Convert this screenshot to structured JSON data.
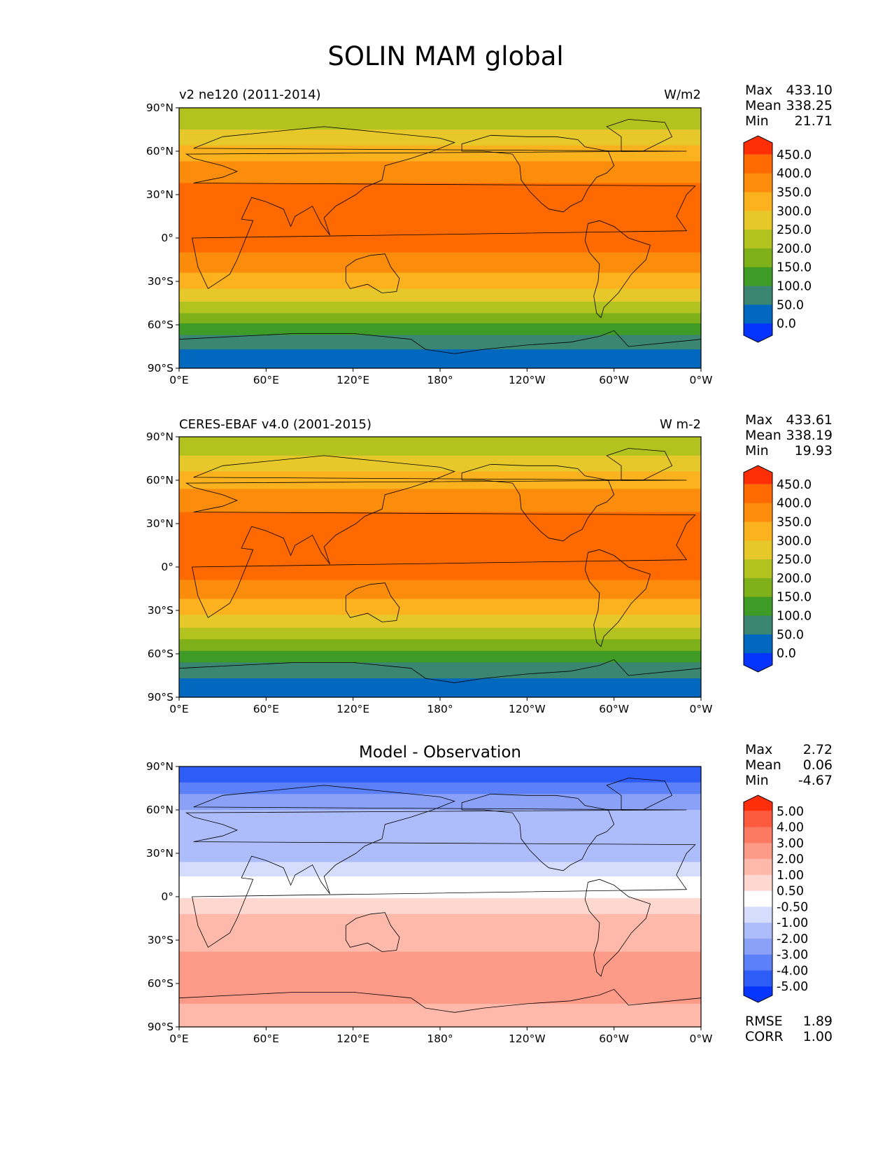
{
  "title": "SOLIN MAM global",
  "panels": [
    {
      "id": "test",
      "title_left": "v2 ne120 (2011-2014)",
      "title_center": "",
      "title_right": "W/m2",
      "stats": [
        {
          "label": "Max",
          "value": "433.10"
        },
        {
          "label": "Mean",
          "value": "338.25"
        },
        {
          "label": "Min",
          "value": "21.71"
        }
      ],
      "colorbar_labels": [
        "450.0",
        "400.0",
        "350.0",
        "300.0",
        "250.0",
        "200.0",
        "150.0",
        "100.0",
        "50.0",
        "0.0"
      ],
      "colorbar_colors": [
        "#ff2e05",
        "#ff6a00",
        "#fb8c0c",
        "#fbb21e",
        "#e6c82a",
        "#b2c21f",
        "#7db019",
        "#3e9b26",
        "#3a8670",
        "#0068bf",
        "#0534ff"
      ]
    },
    {
      "id": "reference",
      "title_left": "CERES-EBAF v4.0 (2001-2015)",
      "title_center": "",
      "title_right": "W m-2",
      "stats": [
        {
          "label": "Max",
          "value": "433.61"
        },
        {
          "label": "Mean",
          "value": "338.19"
        },
        {
          "label": "Min",
          "value": "19.93"
        }
      ],
      "colorbar_labels": [
        "450.0",
        "400.0",
        "350.0",
        "300.0",
        "250.0",
        "200.0",
        "150.0",
        "100.0",
        "50.0",
        "0.0"
      ],
      "colorbar_colors": [
        "#ff2e05",
        "#ff6a00",
        "#fb8c0c",
        "#fbb21e",
        "#e6c82a",
        "#b2c21f",
        "#7db019",
        "#3e9b26",
        "#3a8670",
        "#0068bf",
        "#0534ff"
      ]
    },
    {
      "id": "difference",
      "title_left": "",
      "title_center": "Model - Observation",
      "title_right": "",
      "stats": [
        {
          "label": "Max",
          "value": "2.72"
        },
        {
          "label": "Mean",
          "value": "0.06"
        },
        {
          "label": "Min",
          "value": "-4.67"
        }
      ],
      "extra_stats": [
        {
          "label": "RMSE",
          "value": "1.89"
        },
        {
          "label": "CORR",
          "value": "1.00"
        }
      ],
      "colorbar_labels": [
        "5.00",
        "4.00",
        "3.00",
        "2.00",
        "1.00",
        "0.50",
        "-0.50",
        "-1.00",
        "-2.00",
        "-3.00",
        "-4.00",
        "-5.00"
      ],
      "colorbar_colors": [
        "#ff2e0a",
        "#fc5a3c",
        "#fd7a62",
        "#fe9a88",
        "#feb9ab",
        "#fed8d0",
        "#ffffff",
        "#d6dcfc",
        "#adbcfa",
        "#8aa1f7",
        "#5b80f7",
        "#2d5cf7",
        "#0535ff"
      ]
    }
  ],
  "axes": {
    "lat_ticks": [
      "90°N",
      "60°N",
      "30°N",
      "0°",
      "30°S",
      "60°S",
      "90°S"
    ],
    "lon_ticks": [
      "0°E",
      "60°E",
      "120°E",
      "180°",
      "120°W",
      "60°W",
      "0°W"
    ]
  },
  "chart_data": [
    {
      "type": "heatmap",
      "name": "v2 ne120 (2011-2014)",
      "units": "W/m2",
      "x_range": [
        0,
        360
      ],
      "y_range": [
        -90,
        90
      ],
      "levels": [
        0,
        50,
        100,
        150,
        200,
        250,
        300,
        350,
        400,
        450
      ],
      "lat_bands": [
        {
          "lat": [
            75,
            90
          ],
          "value": 225
        },
        {
          "lat": [
            64,
            75
          ],
          "value": 275
        },
        {
          "lat": [
            53,
            64
          ],
          "value": 325
        },
        {
          "lat": [
            38,
            53
          ],
          "value": 375
        },
        {
          "lat": [
            -10,
            38
          ],
          "value": 425
        },
        {
          "lat": [
            -24,
            -10
          ],
          "value": 375
        },
        {
          "lat": [
            -35,
            -24
          ],
          "value": 325
        },
        {
          "lat": [
            -44,
            -35
          ],
          "value": 275
        },
        {
          "lat": [
            -52,
            -44
          ],
          "value": 225
        },
        {
          "lat": [
            -59,
            -52
          ],
          "value": 175
        },
        {
          "lat": [
            -67,
            -59
          ],
          "value": 125
        },
        {
          "lat": [
            -77,
            -67
          ],
          "value": 75
        },
        {
          "lat": [
            -90,
            -77
          ],
          "value": 25
        }
      ]
    },
    {
      "type": "heatmap",
      "name": "CERES-EBAF v4.0 (2001-2015)",
      "units": "W m-2",
      "x_range": [
        0,
        360
      ],
      "y_range": [
        -90,
        90
      ],
      "levels": [
        0,
        50,
        100,
        150,
        200,
        250,
        300,
        350,
        400,
        450
      ],
      "lat_bands": [
        {
          "lat": [
            77,
            90
          ],
          "value": 225
        },
        {
          "lat": [
            66,
            77
          ],
          "value": 275
        },
        {
          "lat": [
            54,
            66
          ],
          "value": 325
        },
        {
          "lat": [
            38,
            54
          ],
          "value": 375
        },
        {
          "lat": [
            -9,
            38
          ],
          "value": 425
        },
        {
          "lat": [
            -22,
            -9
          ],
          "value": 375
        },
        {
          "lat": [
            -33,
            -22
          ],
          "value": 325
        },
        {
          "lat": [
            -42,
            -33
          ],
          "value": 275
        },
        {
          "lat": [
            -50,
            -42
          ],
          "value": 225
        },
        {
          "lat": [
            -58,
            -50
          ],
          "value": 175
        },
        {
          "lat": [
            -66,
            -58
          ],
          "value": 125
        },
        {
          "lat": [
            -77,
            -66
          ],
          "value": 75
        },
        {
          "lat": [
            -90,
            -77
          ],
          "value": 25
        }
      ]
    },
    {
      "type": "heatmap",
      "name": "Model - Observation",
      "x_range": [
        0,
        360
      ],
      "y_range": [
        -90,
        90
      ],
      "levels": [
        -5,
        -4,
        -3,
        -2,
        -1,
        -0.5,
        0.5,
        1,
        2,
        3,
        4,
        5
      ],
      "lat_bands": [
        {
          "lat": [
            79,
            90
          ],
          "value": -4.5
        },
        {
          "lat": [
            71,
            79
          ],
          "value": -3.5
        },
        {
          "lat": [
            60,
            71
          ],
          "value": -2.5
        },
        {
          "lat": [
            42,
            60
          ],
          "value": -1.5
        },
        {
          "lat": [
            24,
            42
          ],
          "value": -1.5
        },
        {
          "lat": [
            14,
            24
          ],
          "value": -0.75
        },
        {
          "lat": [
            -1,
            14
          ],
          "value": 0
        },
        {
          "lat": [
            -12,
            -1
          ],
          "value": 0.75
        },
        {
          "lat": [
            -38,
            -12
          ],
          "value": 1.5
        },
        {
          "lat": [
            -74,
            -38
          ],
          "value": 2.5
        },
        {
          "lat": [
            -90,
            -74
          ],
          "value": 1.5
        }
      ]
    }
  ]
}
